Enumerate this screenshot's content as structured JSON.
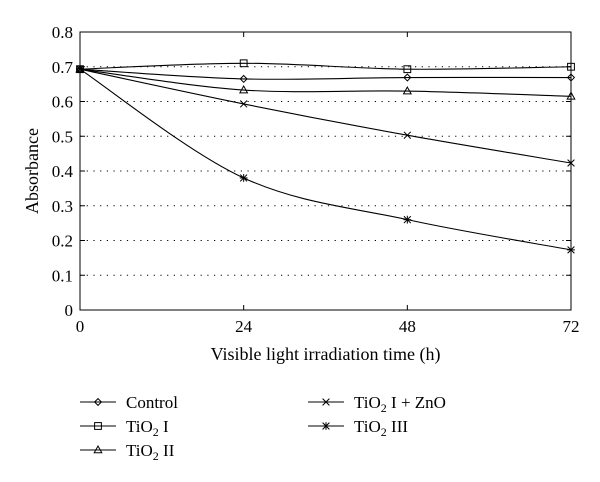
{
  "chart_data": {
    "type": "line",
    "xlabel": "Visible light irradiation time (h)",
    "ylabel": "Absorbance",
    "xlim": [
      0,
      72
    ],
    "ylim": [
      0,
      0.8
    ],
    "xticks": [
      "0",
      "24",
      "48",
      "72"
    ],
    "yticks": [
      "0",
      "0.1",
      "0.2",
      "0.3",
      "0.4",
      "0.5",
      "0.6",
      "0.7",
      "0.8"
    ],
    "grid": "horizontal dotted",
    "legend_position": "bottom",
    "x": [
      0,
      24,
      48,
      72
    ],
    "series": [
      {
        "name": "Control",
        "marker": "diamond",
        "values": [
          0.693,
          0.665,
          0.669,
          0.669
        ]
      },
      {
        "name": "TiO2 I",
        "marker": "square",
        "values": [
          0.693,
          0.71,
          0.693,
          0.7
        ]
      },
      {
        "name": "TiO2 II",
        "marker": "triangle",
        "values": [
          0.693,
          0.633,
          0.63,
          0.615
        ]
      },
      {
        "name": "TiO2 I + ZnO",
        "marker": "x",
        "values": [
          0.693,
          0.593,
          0.503,
          0.423
        ]
      },
      {
        "name": "TiO2 III",
        "marker": "asterisk",
        "values": [
          0.693,
          0.38,
          0.26,
          0.173
        ]
      }
    ]
  }
}
